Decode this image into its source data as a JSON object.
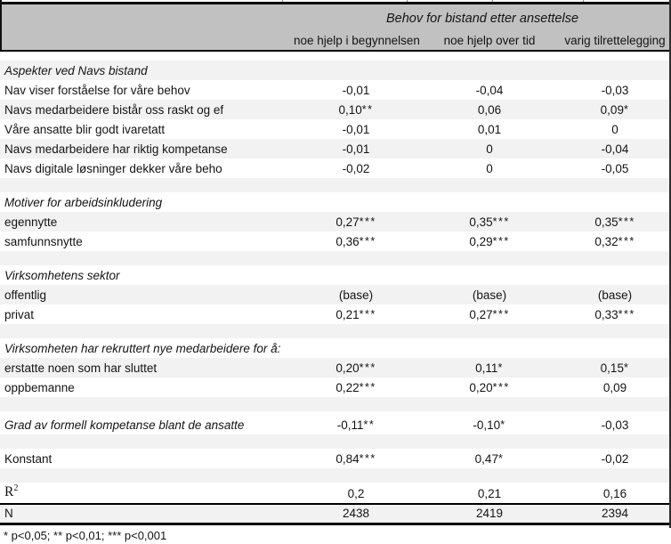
{
  "table": {
    "title": "Behov for bistand etter ansettelse",
    "columns": [
      "noe hjelp i begynnelsen",
      "noe hjelp over tid",
      "varig tilrettelegging"
    ],
    "rows": [
      {
        "kind": "spacer",
        "size": "sm",
        "shaded": false
      },
      {
        "kind": "section",
        "label": "Aspekter ved Navs bistand",
        "shaded": true
      },
      {
        "kind": "data",
        "label": "Nav viser forståelse for våre behov",
        "values": [
          "-0,01",
          "-0,04",
          "-0,03"
        ],
        "shaded": false
      },
      {
        "kind": "data",
        "label": "Navs medarbeidere bistår oss raskt og ef",
        "values": [
          "0,10**",
          "0,06",
          "0,09*"
        ],
        "shaded": true
      },
      {
        "kind": "data",
        "label": "Våre ansatte blir godt ivaretatt",
        "values": [
          "-0,01",
          "0,01",
          "0"
        ],
        "shaded": false
      },
      {
        "kind": "data",
        "label": "Navs medarbeidere har riktig kompetanse",
        "values": [
          "-0,01",
          "0",
          "-0,04"
        ],
        "shaded": true
      },
      {
        "kind": "data",
        "label": "Navs digitale løsninger dekker våre beho",
        "values": [
          "-0,02",
          "0",
          "-0,05"
        ],
        "shaded": false
      },
      {
        "kind": "spacer",
        "size": "md",
        "shaded": true
      },
      {
        "kind": "section",
        "label": "Motiver for arbeidsinkludering",
        "shaded": false
      },
      {
        "kind": "data",
        "label": "egennytte",
        "values": [
          "0,27***",
          "0,35***",
          "0,35***"
        ],
        "shaded": true
      },
      {
        "kind": "data",
        "label": "samfunnsnytte",
        "values": [
          "0,36***",
          "0,29***",
          "0,32***"
        ],
        "shaded": false
      },
      {
        "kind": "spacer",
        "size": "md",
        "shaded": true
      },
      {
        "kind": "section",
        "label": "Virksomhetens sektor",
        "shaded": false
      },
      {
        "kind": "data",
        "label": "offentlig",
        "values": [
          "(base)",
          "(base)",
          "(base)"
        ],
        "shaded": true
      },
      {
        "kind": "data",
        "label": "privat",
        "values": [
          "0,21***",
          "0,27***",
          "0,33***"
        ],
        "shaded": false
      },
      {
        "kind": "spacer",
        "size": "md",
        "shaded": true
      },
      {
        "kind": "section",
        "label": "Virksomheten har rekruttert nye medarbeidere for å:",
        "shaded": false
      },
      {
        "kind": "data",
        "label": "erstatte noen som har sluttet",
        "values": [
          "0,20***",
          "0,11*",
          "0,15*"
        ],
        "shaded": true
      },
      {
        "kind": "data",
        "label": "oppbemanne",
        "values": [
          "0,22***",
          "0,20***",
          "0,09"
        ],
        "shaded": false
      },
      {
        "kind": "spacer",
        "size": "md",
        "shaded": true
      },
      {
        "kind": "data",
        "italic": true,
        "tall": true,
        "label": "Grad av formell kompetanse blant de ansatte",
        "values": [
          "-0,11**",
          "-0,10*",
          "-0,03"
        ],
        "shaded": false
      },
      {
        "kind": "spacer",
        "size": "md",
        "shaded": true
      },
      {
        "kind": "data",
        "label": "Konstant",
        "values": [
          "0,84***",
          "0,47*",
          "-0,02"
        ],
        "shaded": false
      },
      {
        "kind": "spacer",
        "size": "md",
        "shaded": true
      },
      {
        "kind": "data",
        "r2": true,
        "label": "R",
        "label_sup": "2",
        "values": [
          "0,2",
          "0,21",
          "0,16"
        ],
        "shaded": false
      },
      {
        "kind": "data",
        "nrow": true,
        "label": "N",
        "values": [
          "2438",
          "2419",
          "2394"
        ],
        "shaded": true
      }
    ],
    "footnote": "* p<0,05; ** p<0,01; *** p<0,001"
  },
  "colors": {
    "header_bg": "#c1c1c1",
    "row_band_bg": "#f2f2f2",
    "rule": "#000000"
  }
}
